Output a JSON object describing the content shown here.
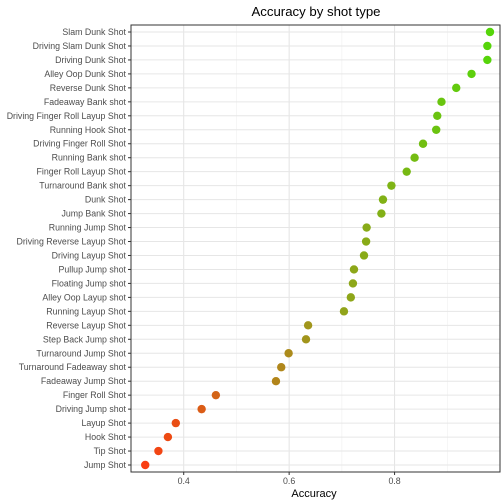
{
  "chart_data": {
    "type": "scatter",
    "title": "Accuracy by shot type",
    "xlabel": "Accuracy",
    "ylabel": "",
    "xlim": [
      0.3,
      1.0
    ],
    "x_ticks": [
      0.4,
      0.6,
      0.8
    ],
    "x_tick_labels": [
      "0.4",
      "0.6",
      "0.8"
    ],
    "grid": true,
    "legend": "none",
    "color_low": "#f93e12",
    "color_mid": "#9c9b1d",
    "color_high": "#55d50a",
    "points": [
      {
        "label": "Slam Dunk Shot",
        "value": 0.981
      },
      {
        "label": "Driving Slam Dunk Shot",
        "value": 0.976
      },
      {
        "label": "Driving Dunk Shot",
        "value": 0.976
      },
      {
        "label": "Alley Oop Dunk Shot",
        "value": 0.946
      },
      {
        "label": "Reverse Dunk Shot",
        "value": 0.917
      },
      {
        "label": "Fadeaway Bank shot",
        "value": 0.889
      },
      {
        "label": "Driving Finger Roll Layup Shot",
        "value": 0.881
      },
      {
        "label": "Running Hook Shot",
        "value": 0.879
      },
      {
        "label": "Driving Finger Roll Shot",
        "value": 0.854
      },
      {
        "label": "Running Bank shot",
        "value": 0.838
      },
      {
        "label": "Finger Roll Layup Shot",
        "value": 0.823
      },
      {
        "label": "Turnaround Bank shot",
        "value": 0.794
      },
      {
        "label": "Dunk Shot",
        "value": 0.778
      },
      {
        "label": "Jump Bank Shot",
        "value": 0.775
      },
      {
        "label": "Running Jump Shot",
        "value": 0.747
      },
      {
        "label": "Driving Reverse Layup Shot",
        "value": 0.746
      },
      {
        "label": "Driving Layup Shot",
        "value": 0.742
      },
      {
        "label": "Pullup Jump shot",
        "value": 0.723
      },
      {
        "label": "Floating Jump shot",
        "value": 0.721
      },
      {
        "label": "Alley Oop Layup shot",
        "value": 0.717
      },
      {
        "label": "Running Layup Shot",
        "value": 0.704
      },
      {
        "label": "Reverse Layup Shot",
        "value": 0.636
      },
      {
        "label": "Step Back Jump shot",
        "value": 0.632
      },
      {
        "label": "Turnaround Jump Shot",
        "value": 0.599
      },
      {
        "label": "Turnaround Fadeaway shot",
        "value": 0.585
      },
      {
        "label": "Fadeaway Jump Shot",
        "value": 0.575
      },
      {
        "label": "Finger Roll Shot",
        "value": 0.461
      },
      {
        "label": "Driving Jump shot",
        "value": 0.434
      },
      {
        "label": "Layup Shot",
        "value": 0.385
      },
      {
        "label": "Hook Shot",
        "value": 0.37
      },
      {
        "label": "Tip Shot",
        "value": 0.352
      },
      {
        "label": "Jump Shot",
        "value": 0.327
      }
    ]
  }
}
